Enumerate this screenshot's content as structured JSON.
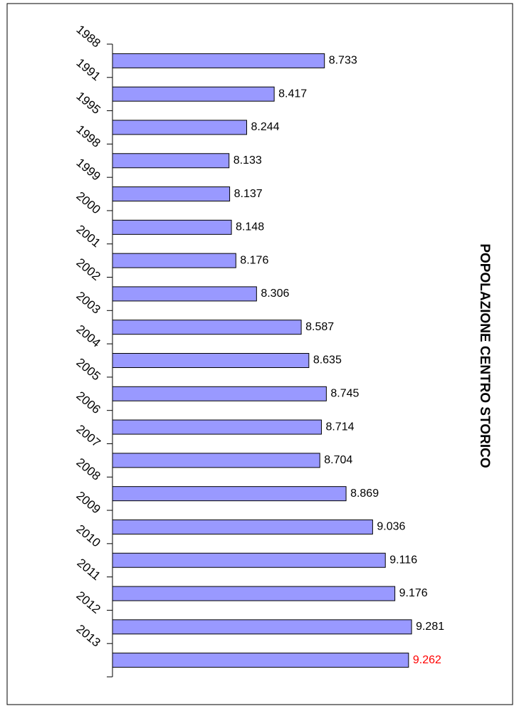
{
  "chart_data": {
    "type": "bar",
    "orientation": "horizontal",
    "title": "POPOLAZIONE CENTRO STORICO",
    "categories": [
      "1988",
      "1991",
      "1995",
      "1998",
      "1999",
      "2000",
      "2001",
      "2002",
      "2003",
      "2004",
      "2005",
      "2006",
      "2007",
      "2008",
      "2009",
      "2010",
      "2011",
      "2012",
      "2013"
    ],
    "values": [
      8733,
      8417,
      8244,
      8133,
      8137,
      8148,
      8176,
      8306,
      8587,
      8635,
      8745,
      8714,
      8704,
      8869,
      9036,
      9116,
      9176,
      9281,
      9262
    ],
    "value_labels": [
      "8.733",
      "8.417",
      "8.244",
      "8.133",
      "8.137",
      "8.148",
      "8.176",
      "8.306",
      "8.587",
      "8.635",
      "8.745",
      "8.714",
      "8.704",
      "8.869",
      "9.036",
      "9.116",
      "9.176",
      "9.281",
      "9.262"
    ],
    "label_colors": [
      "#000000",
      "#000000",
      "#000000",
      "#000000",
      "#000000",
      "#000000",
      "#000000",
      "#000000",
      "#000000",
      "#000000",
      "#000000",
      "#000000",
      "#000000",
      "#000000",
      "#000000",
      "#000000",
      "#000000",
      "#000000",
      "#ff0000"
    ],
    "color": "#9999ff",
    "xlim": [
      7400,
      9500
    ]
  }
}
